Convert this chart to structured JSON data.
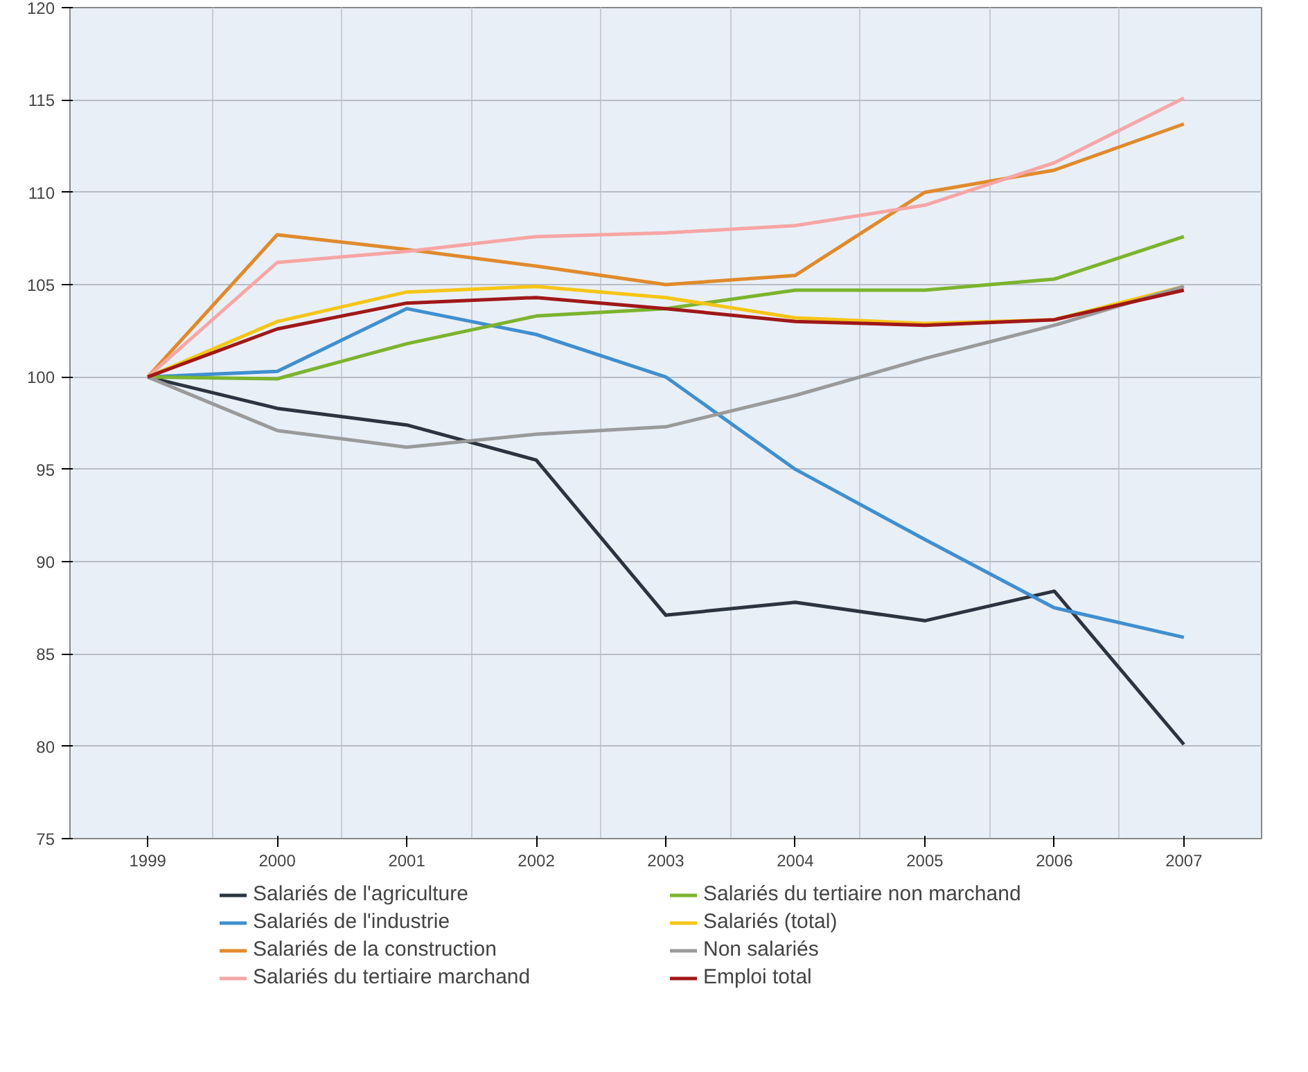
{
  "chart_data": {
    "type": "line",
    "categories": [
      "1999",
      "2000",
      "2001",
      "2002",
      "2003",
      "2004",
      "2005",
      "2006",
      "2007"
    ],
    "ylim": [
      75,
      120
    ],
    "yticks": [
      75,
      80,
      85,
      90,
      95,
      100,
      105,
      110,
      115,
      120
    ],
    "grid": true,
    "legend": "bottom",
    "marker": "none",
    "line_style": "solid",
    "series": [
      {
        "name": "Salariés de l'agriculture",
        "color": "#2b3440",
        "values": [
          100,
          98.3,
          97.4,
          95.5,
          87.1,
          87.8,
          86.8,
          88.4,
          80.1
        ]
      },
      {
        "name": "Salariés de l'industrie",
        "color": "#3f8fd0",
        "values": [
          100,
          100.3,
          103.7,
          102.3,
          100,
          95,
          91.2,
          87.5,
          85.9
        ]
      },
      {
        "name": "Salariés de la construction",
        "color": "#e08a2c",
        "values": [
          100,
          107.7,
          106.9,
          106,
          105,
          105.5,
          110,
          111.2,
          113.7
        ]
      },
      {
        "name": "Salariés du tertiaire marchand",
        "color": "#f7a5a5",
        "values": [
          100,
          106.2,
          106.8,
          107.6,
          107.8,
          108.2,
          109.3,
          111.6,
          115.1
        ]
      },
      {
        "name": "Salariés du tertiaire non marchand",
        "color": "#7cb32e",
        "values": [
          100,
          99.9,
          101.8,
          103.3,
          103.7,
          104.7,
          104.7,
          105.3,
          107.6
        ]
      },
      {
        "name": "Salariés (total)",
        "color": "#f5c518",
        "values": [
          100,
          103,
          104.6,
          104.9,
          104.3,
          103.2,
          102.9,
          103.1,
          104.9
        ]
      },
      {
        "name": "Non salariés",
        "color": "#9a9a9a",
        "values": [
          100,
          97.1,
          96.2,
          96.9,
          97.3,
          99,
          101,
          102.8,
          104.9
        ]
      },
      {
        "name": "Emploi total",
        "color": "#a01818",
        "values": [
          100,
          102.6,
          104,
          104.3,
          103.7,
          103,
          102.8,
          103.1,
          104.7
        ]
      }
    ]
  }
}
